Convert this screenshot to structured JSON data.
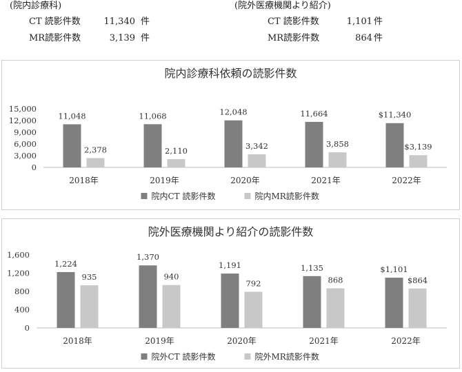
{
  "summary": {
    "inhouse": {
      "heading": "(院内診療科)",
      "rows": [
        {
          "label": "CT 読影件数",
          "value": "11,340",
          "unit": "件"
        },
        {
          "label": "MR読影件数",
          "value": "3,139",
          "unit": "件"
        }
      ]
    },
    "external": {
      "heading": "(院外医療機関より紹介)",
      "rows": [
        {
          "label": "CT 読影件数",
          "value": "1,101",
          "unit": "件"
        },
        {
          "label": "MR読影件数",
          "value": "864",
          "unit": "件"
        }
      ]
    }
  },
  "chart_data": [
    {
      "type": "bar",
      "title": "院内診療科依頼の読影件数",
      "categories": [
        "2018年",
        "2019年",
        "2020年",
        "2021年",
        "2022年"
      ],
      "ylim": [
        0,
        15000
      ],
      "yticks": [
        "0",
        "3,000",
        "6,000",
        "9,000",
        "12,000",
        "15,000"
      ],
      "ytick_values": [
        0,
        3000,
        6000,
        9000,
        12000,
        15000
      ],
      "grid": false,
      "legend_position": "bottom",
      "series": [
        {
          "name": "院内CT 読影件数",
          "color": "#7f7f7f",
          "values": [
            11048,
            11068,
            12048,
            11664,
            11340
          ],
          "labels": [
            "11,048",
            "11,068",
            "12,048",
            "11,664",
            "$11,340"
          ]
        },
        {
          "name": "院内MR読影件数",
          "color": "#c8c8c8",
          "values": [
            2378,
            2110,
            3342,
            3858,
            3139
          ],
          "labels": [
            "2,378",
            "2,110",
            "3,342",
            "3,858",
            "$3,139"
          ]
        }
      ]
    },
    {
      "type": "bar",
      "title": "院外医療機関より紹介の読影件数",
      "categories": [
        "2018年",
        "2019年",
        "2020年",
        "2021年",
        "2022年"
      ],
      "ylim": [
        0,
        1600
      ],
      "yticks": [
        "0",
        "400",
        "800",
        "1,200",
        "1,600"
      ],
      "ytick_values": [
        0,
        400,
        800,
        1200,
        1600
      ],
      "grid": false,
      "legend_position": "bottom",
      "series": [
        {
          "name": "院外CT 読影件数",
          "color": "#7f7f7f",
          "values": [
            1224,
            1370,
            1191,
            1135,
            1101
          ],
          "labels": [
            "1,224",
            "1,370",
            "1,191",
            "1,135",
            "$1,101"
          ]
        },
        {
          "name": "院外MR読影件数",
          "color": "#c8c8c8",
          "values": [
            935,
            940,
            792,
            868,
            864
          ],
          "labels": [
            "935",
            "940",
            "792",
            "868",
            "$864"
          ]
        }
      ]
    }
  ]
}
